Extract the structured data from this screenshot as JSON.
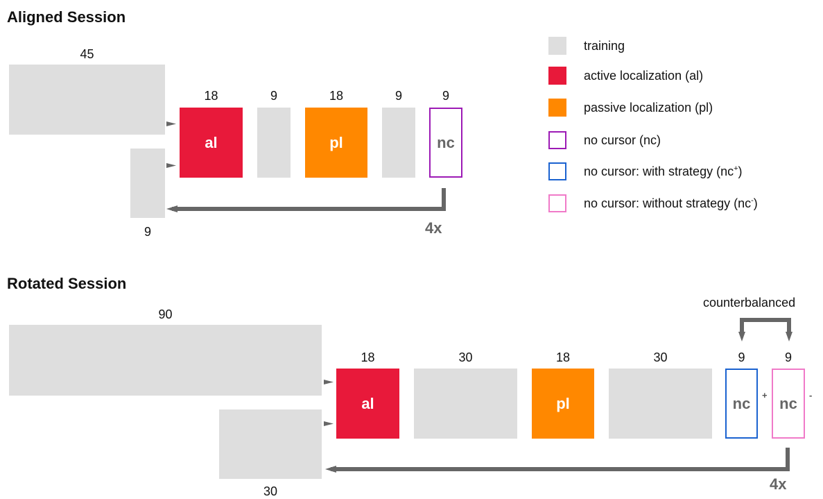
{
  "aligned": {
    "title": "Aligned Session",
    "training_top": "45",
    "training_bottom": "9",
    "al": {
      "count": "18",
      "label": "al"
    },
    "train1": "9",
    "pl": {
      "count": "18",
      "label": "pl"
    },
    "train2": "9",
    "nc": {
      "count": "9",
      "label": "nc"
    },
    "repeat": "4x"
  },
  "rotated": {
    "title": "Rotated Session",
    "training_top": "90",
    "training_bottom": "30",
    "al": {
      "count": "18",
      "label": "al"
    },
    "train1": "30",
    "pl": {
      "count": "18",
      "label": "pl"
    },
    "train2": "30",
    "nc_plus": {
      "count": "9",
      "label": "nc",
      "sup": "+"
    },
    "nc_minus": {
      "count": "9",
      "label": "nc",
      "sup": "-"
    },
    "counterbalanced": "counterbalanced",
    "repeat": "4x"
  },
  "legend": {
    "training": "training",
    "active": "active localization (al)",
    "passive": "passive localization (pl)",
    "nocursor": "no cursor (nc)",
    "with_strategy": "no cursor: with strategy (nc",
    "with_strategy_sup": "+",
    "without_strategy": "no cursor: without strategy (nc",
    "without_strategy_sup": "-",
    "close_paren": ")"
  },
  "colors": {
    "training": "#dedede",
    "active": "#e8193a",
    "passive": "#ff8800",
    "nocursor": "#9c1ab5",
    "with_strategy": "#1a62d0",
    "without_strategy": "#f07ac8",
    "arrow": "#666666"
  }
}
